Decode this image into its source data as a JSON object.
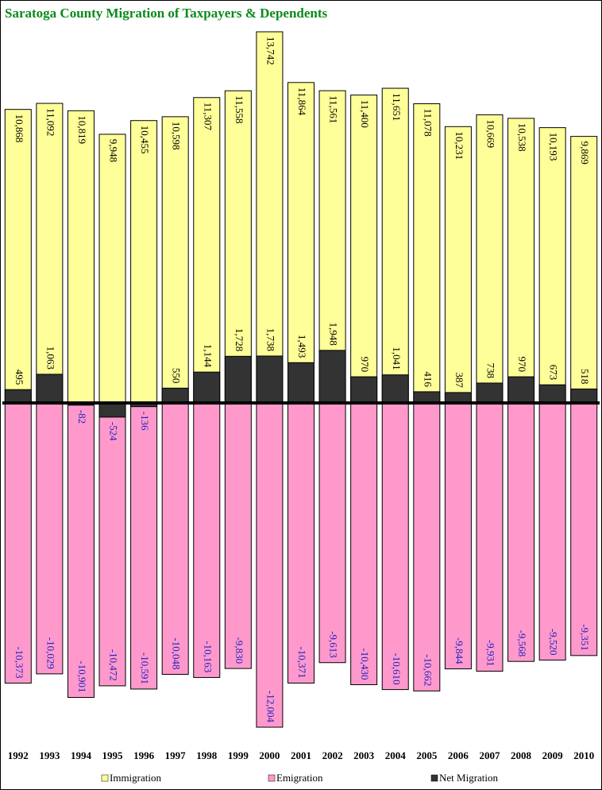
{
  "chart_data": {
    "type": "bar",
    "title": "Saratoga County Migration of Taxpayers & Dependents",
    "categories": [
      "1992",
      "1993",
      "1994",
      "1995",
      "1996",
      "1997",
      "1998",
      "1999",
      "2000",
      "2001",
      "2002",
      "2003",
      "2004",
      "2005",
      "2006",
      "2007",
      "2008",
      "2009",
      "2010"
    ],
    "series": [
      {
        "name": "Immigration",
        "color": "#ffff99",
        "values": [
          10868,
          11092,
          10819,
          9948,
          10455,
          10598,
          11307,
          11558,
          13742,
          11864,
          11561,
          11400,
          11651,
          11078,
          10231,
          10669,
          10538,
          10193,
          9869
        ],
        "value_labels": [
          "10,868",
          "11,092",
          "10,819",
          "9,948",
          "10,455",
          "10,598",
          "11,307",
          "11,558",
          "13,742",
          "11,864",
          "11,561",
          "11,400",
          "11,651",
          "11,078",
          "10,231",
          "10,669",
          "10,538",
          "10,193",
          "9,869"
        ]
      },
      {
        "name": "Emigration",
        "color": "#ff99cc",
        "values": [
          -10373,
          -10029,
          -10901,
          -10472,
          -10591,
          -10048,
          -10163,
          -9830,
          -12004,
          -10371,
          -9613,
          -10430,
          -10610,
          -10662,
          -9844,
          -9931,
          -9568,
          -9520,
          -9351
        ],
        "value_labels": [
          "-10,373",
          "-10,029",
          "-10,901",
          "-10,472",
          "-10,591",
          "-10,048",
          "-10,163",
          "-9,830",
          "-12,004",
          "-10,371",
          "-9,613",
          "-10,430",
          "-10,610",
          "-10,662",
          "-9,844",
          "-9,931",
          "-9,568",
          "-9,520",
          "-9,351"
        ]
      },
      {
        "name": "Net Migration",
        "color": "#333333",
        "values": [
          495,
          1063,
          -82,
          -524,
          -136,
          550,
          1144,
          1728,
          1738,
          1493,
          1948,
          970,
          1041,
          416,
          387,
          738,
          970,
          673,
          518
        ],
        "value_labels": [
          "495",
          "1,063",
          "-82",
          "-524",
          "-136",
          "550",
          "1,144",
          "1,728",
          "1,738",
          "1,493",
          "1,948",
          "970",
          "1,041",
          "416",
          "387",
          "738",
          "970",
          "673",
          "518"
        ]
      }
    ]
  }
}
